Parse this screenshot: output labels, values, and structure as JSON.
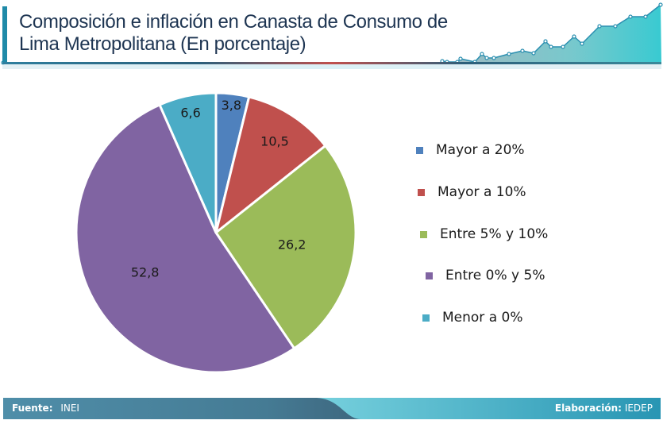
{
  "header": {
    "title_line1": "Composición e inflación en Canasta de Consumo de",
    "title_line2": "Lima Metropolitana (En porcentaje)"
  },
  "chart_data": {
    "type": "pie",
    "title": "Composición e inflación en Canasta de Consumo de Lima Metropolitana (En porcentaje)",
    "start_angle_deg": 0,
    "direction": "clockwise",
    "legend_position": "right",
    "slices": [
      {
        "label": "Mayor a 20%",
        "value": 3.8,
        "display": "3,8",
        "color": "#4f81bd"
      },
      {
        "label": "Mayor a 10%",
        "value": 10.5,
        "display": "10,5",
        "color": "#c0504d"
      },
      {
        "label": "Entre 5% y 10%",
        "value": 26.2,
        "display": "26,2",
        "color": "#9bbb59"
      },
      {
        "label": "Entre 0% y 5%",
        "value": 52.8,
        "display": "52,8",
        "color": "#8064a2"
      },
      {
        "label": "Menor a 0%",
        "value": 6.6,
        "display": "6,6",
        "color": "#4bacc6"
      }
    ]
  },
  "footer": {
    "source_label": "Fuente:",
    "source_value": "INEI",
    "credit_label": "Elaboración:",
    "credit_value": "IEDEP"
  },
  "colors": {
    "title_text": "#1e3552",
    "accent": "#1f8aa8",
    "footer_dark": "#457b94",
    "footer_light": "#2e9ab6"
  }
}
